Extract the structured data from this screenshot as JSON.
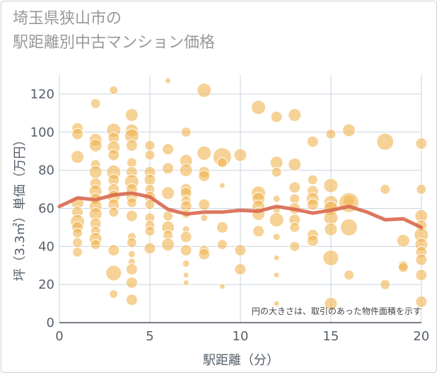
{
  "title_lines": [
    "埼玉県狭山市の",
    "駅距離別中古マンション価格"
  ],
  "chart_data": {
    "type": "scatter",
    "title": "埼玉県狭山市の 駅距離別中古マンション価格",
    "xlabel": "駅距離（分）",
    "ylabel": "坪（3.3㎡）単価（万円）",
    "xlim": [
      0,
      20
    ],
    "ylim": [
      0,
      130
    ],
    "xticks": [
      "0",
      "5",
      "10",
      "15",
      "20"
    ],
    "yticks": [
      "0",
      "20",
      "40",
      "60",
      "80",
      "100",
      "120"
    ],
    "annotation": "円の大きさは、取引のあった物件面積を示す",
    "grid": true,
    "colors": {
      "bubble": "#f0b450",
      "trend": "#d9684e",
      "grid": "#c9d3de"
    },
    "trend": {
      "x": [
        0,
        1,
        2,
        3,
        4,
        5,
        6,
        7,
        8,
        9,
        10,
        11,
        12,
        13,
        14,
        15,
        16,
        17,
        18,
        19,
        20
      ],
      "y": [
        61,
        65.5,
        64.5,
        67,
        68,
        66,
        59.5,
        57,
        58,
        58,
        59,
        58.5,
        61,
        59.5,
        57.5,
        59,
        61,
        58,
        54,
        54.5,
        50
      ]
    },
    "points": [
      {
        "x": 1,
        "y": 102,
        "s": 8
      },
      {
        "x": 1,
        "y": 99,
        "s": 8
      },
      {
        "x": 1,
        "y": 87,
        "s": 9
      },
      {
        "x": 1,
        "y": 63,
        "s": 9
      },
      {
        "x": 1,
        "y": 58,
        "s": 8
      },
      {
        "x": 1,
        "y": 53,
        "s": 10
      },
      {
        "x": 1,
        "y": 50,
        "s": 8
      },
      {
        "x": 1,
        "y": 47,
        "s": 7
      },
      {
        "x": 1,
        "y": 42,
        "s": 7
      },
      {
        "x": 1,
        "y": 37,
        "s": 7
      },
      {
        "x": 2,
        "y": 115,
        "s": 7
      },
      {
        "x": 2,
        "y": 96,
        "s": 9
      },
      {
        "x": 2,
        "y": 93,
        "s": 9
      },
      {
        "x": 2,
        "y": 83,
        "s": 7
      },
      {
        "x": 2,
        "y": 79,
        "s": 9
      },
      {
        "x": 2,
        "y": 73,
        "s": 8
      },
      {
        "x": 2,
        "y": 69,
        "s": 9
      },
      {
        "x": 2,
        "y": 65,
        "s": 8
      },
      {
        "x": 2,
        "y": 61,
        "s": 9
      },
      {
        "x": 2,
        "y": 57,
        "s": 9
      },
      {
        "x": 2,
        "y": 52,
        "s": 8
      },
      {
        "x": 2,
        "y": 48,
        "s": 7
      },
      {
        "x": 2,
        "y": 44,
        "s": 9
      },
      {
        "x": 2,
        "y": 41,
        "s": 7
      },
      {
        "x": 3,
        "y": 122,
        "s": 6
      },
      {
        "x": 3,
        "y": 101,
        "s": 10
      },
      {
        "x": 3,
        "y": 97,
        "s": 8
      },
      {
        "x": 3,
        "y": 92,
        "s": 9
      },
      {
        "x": 3,
        "y": 88,
        "s": 8
      },
      {
        "x": 3,
        "y": 79,
        "s": 10
      },
      {
        "x": 3,
        "y": 75,
        "s": 8
      },
      {
        "x": 3,
        "y": 70,
        "s": 8
      },
      {
        "x": 3,
        "y": 66,
        "s": 9
      },
      {
        "x": 3,
        "y": 62,
        "s": 8
      },
      {
        "x": 3,
        "y": 58,
        "s": 7
      },
      {
        "x": 3,
        "y": 38,
        "s": 8
      },
      {
        "x": 3,
        "y": 26,
        "s": 11
      },
      {
        "x": 3,
        "y": 15,
        "s": 6
      },
      {
        "x": 4,
        "y": 109,
        "s": 9
      },
      {
        "x": 4,
        "y": 101,
        "s": 9
      },
      {
        "x": 4,
        "y": 98,
        "s": 10
      },
      {
        "x": 4,
        "y": 93,
        "s": 8
      },
      {
        "x": 4,
        "y": 84,
        "s": 7
      },
      {
        "x": 4,
        "y": 79,
        "s": 8
      },
      {
        "x": 4,
        "y": 74,
        "s": 10
      },
      {
        "x": 4,
        "y": 70,
        "s": 8
      },
      {
        "x": 4,
        "y": 66,
        "s": 8
      },
      {
        "x": 4,
        "y": 63,
        "s": 7
      },
      {
        "x": 4,
        "y": 56,
        "s": 8
      },
      {
        "x": 4,
        "y": 45,
        "s": 6
      },
      {
        "x": 4,
        "y": 42,
        "s": 7
      },
      {
        "x": 4,
        "y": 36,
        "s": 5
      },
      {
        "x": 4,
        "y": 32,
        "s": 5
      },
      {
        "x": 4,
        "y": 28,
        "s": 8
      },
      {
        "x": 4,
        "y": 21,
        "s": 8
      },
      {
        "x": 4,
        "y": 12,
        "s": 8
      },
      {
        "x": 5,
        "y": 93,
        "s": 7
      },
      {
        "x": 5,
        "y": 88,
        "s": 7
      },
      {
        "x": 5,
        "y": 79,
        "s": 8
      },
      {
        "x": 5,
        "y": 75,
        "s": 8
      },
      {
        "x": 5,
        "y": 70,
        "s": 7
      },
      {
        "x": 5,
        "y": 66,
        "s": 8
      },
      {
        "x": 5,
        "y": 62,
        "s": 7
      },
      {
        "x": 5,
        "y": 55,
        "s": 7
      },
      {
        "x": 5,
        "y": 51,
        "s": 7
      },
      {
        "x": 5,
        "y": 48,
        "s": 7
      },
      {
        "x": 5,
        "y": 39,
        "s": 8
      },
      {
        "x": 6,
        "y": 127,
        "s": 4
      },
      {
        "x": 6,
        "y": 91,
        "s": 8
      },
      {
        "x": 6,
        "y": 81,
        "s": 8
      },
      {
        "x": 6,
        "y": 68,
        "s": 9
      },
      {
        "x": 6,
        "y": 56,
        "s": 7
      },
      {
        "x": 6,
        "y": 50,
        "s": 9
      },
      {
        "x": 6,
        "y": 46,
        "s": 7
      },
      {
        "x": 6,
        "y": 41,
        "s": 9
      },
      {
        "x": 7,
        "y": 100,
        "s": 7
      },
      {
        "x": 7,
        "y": 85,
        "s": 9
      },
      {
        "x": 7,
        "y": 80,
        "s": 9
      },
      {
        "x": 7,
        "y": 70,
        "s": 8
      },
      {
        "x": 7,
        "y": 68,
        "s": 8
      },
      {
        "x": 7,
        "y": 64,
        "s": 7
      },
      {
        "x": 7,
        "y": 61,
        "s": 8
      },
      {
        "x": 7,
        "y": 57,
        "s": 6
      },
      {
        "x": 7,
        "y": 49,
        "s": 5
      },
      {
        "x": 7,
        "y": 45,
        "s": 8
      },
      {
        "x": 7,
        "y": 38,
        "s": 8
      },
      {
        "x": 7,
        "y": 31,
        "s": 5
      },
      {
        "x": 7,
        "y": 25,
        "s": 4
      },
      {
        "x": 7,
        "y": 21,
        "s": 4
      },
      {
        "x": 8,
        "y": 122,
        "s": 10
      },
      {
        "x": 8,
        "y": 89,
        "s": 10
      },
      {
        "x": 8,
        "y": 79,
        "s": 8
      },
      {
        "x": 8,
        "y": 77,
        "s": 8
      },
      {
        "x": 8,
        "y": 62,
        "s": 8
      },
      {
        "x": 8,
        "y": 55,
        "s": 5
      },
      {
        "x": 8,
        "y": 38,
        "s": 7
      },
      {
        "x": 8,
        "y": 36,
        "s": 8
      },
      {
        "x": 9,
        "y": 87,
        "s": 13
      },
      {
        "x": 9,
        "y": 84,
        "s": 7
      },
      {
        "x": 9,
        "y": 72,
        "s": 4
      },
      {
        "x": 9,
        "y": 50,
        "s": 8
      },
      {
        "x": 9,
        "y": 41,
        "s": 7
      },
      {
        "x": 9,
        "y": 19,
        "s": 4
      },
      {
        "x": 10,
        "y": 88,
        "s": 9
      },
      {
        "x": 10,
        "y": 38,
        "s": 8
      },
      {
        "x": 10,
        "y": 28,
        "s": 8
      },
      {
        "x": 11,
        "y": 113,
        "s": 10
      },
      {
        "x": 11,
        "y": 68,
        "s": 10
      },
      {
        "x": 11,
        "y": 65,
        "s": 9
      },
      {
        "x": 11,
        "y": 61,
        "s": 9
      },
      {
        "x": 11,
        "y": 57,
        "s": 9
      },
      {
        "x": 11,
        "y": 48,
        "s": 8
      },
      {
        "x": 12,
        "y": 108,
        "s": 8
      },
      {
        "x": 12,
        "y": 84,
        "s": 9
      },
      {
        "x": 12,
        "y": 79,
        "s": 7
      },
      {
        "x": 12,
        "y": 65,
        "s": 5
      },
      {
        "x": 12,
        "y": 59,
        "s": 5
      },
      {
        "x": 12,
        "y": 54,
        "s": 10
      },
      {
        "x": 12,
        "y": 45,
        "s": 5
      },
      {
        "x": 12,
        "y": 34,
        "s": 4
      },
      {
        "x": 12,
        "y": 25,
        "s": 4
      },
      {
        "x": 12,
        "y": 10,
        "s": 4
      },
      {
        "x": 13,
        "y": 109,
        "s": 9
      },
      {
        "x": 13,
        "y": 83,
        "s": 9
      },
      {
        "x": 13,
        "y": 71,
        "s": 8
      },
      {
        "x": 13,
        "y": 65,
        "s": 7
      },
      {
        "x": 13,
        "y": 60,
        "s": 8
      },
      {
        "x": 13,
        "y": 54,
        "s": 8
      },
      {
        "x": 13,
        "y": 50,
        "s": 7
      },
      {
        "x": 13,
        "y": 40,
        "s": 7
      },
      {
        "x": 14,
        "y": 95,
        "s": 8
      },
      {
        "x": 14,
        "y": 75,
        "s": 7
      },
      {
        "x": 14,
        "y": 69,
        "s": 8
      },
      {
        "x": 14,
        "y": 65,
        "s": 9
      },
      {
        "x": 14,
        "y": 62,
        "s": 8
      },
      {
        "x": 14,
        "y": 46,
        "s": 8
      },
      {
        "x": 14,
        "y": 43,
        "s": 8
      },
      {
        "x": 15,
        "y": 99,
        "s": 7
      },
      {
        "x": 15,
        "y": 72,
        "s": 10
      },
      {
        "x": 15,
        "y": 63,
        "s": 10
      },
      {
        "x": 15,
        "y": 60,
        "s": 10
      },
      {
        "x": 15,
        "y": 55,
        "s": 10
      },
      {
        "x": 15,
        "y": 49,
        "s": 9
      },
      {
        "x": 15,
        "y": 34,
        "s": 11
      },
      {
        "x": 15,
        "y": 10,
        "s": 9
      },
      {
        "x": 16,
        "y": 101,
        "s": 9
      },
      {
        "x": 16,
        "y": 64,
        "s": 8
      },
      {
        "x": 16,
        "y": 63,
        "s": 14
      },
      {
        "x": 16,
        "y": 50,
        "s": 12
      },
      {
        "x": 16,
        "y": 25,
        "s": 7
      },
      {
        "x": 18,
        "y": 95,
        "s": 12
      },
      {
        "x": 18,
        "y": 70,
        "s": 7
      },
      {
        "x": 18,
        "y": 20,
        "s": 7
      },
      {
        "x": 19,
        "y": 43,
        "s": 9
      },
      {
        "x": 19,
        "y": 30,
        "s": 7
      },
      {
        "x": 19,
        "y": 29,
        "s": 7
      },
      {
        "x": 20,
        "y": 94,
        "s": 8
      },
      {
        "x": 20,
        "y": 70,
        "s": 7
      },
      {
        "x": 20,
        "y": 56,
        "s": 9
      },
      {
        "x": 20,
        "y": 51,
        "s": 8
      },
      {
        "x": 20,
        "y": 46,
        "s": 10
      },
      {
        "x": 20,
        "y": 41,
        "s": 9
      },
      {
        "x": 20,
        "y": 37,
        "s": 8
      },
      {
        "x": 20,
        "y": 33,
        "s": 8
      },
      {
        "x": 20,
        "y": 25,
        "s": 8
      },
      {
        "x": 20,
        "y": 11,
        "s": 8
      }
    ]
  }
}
